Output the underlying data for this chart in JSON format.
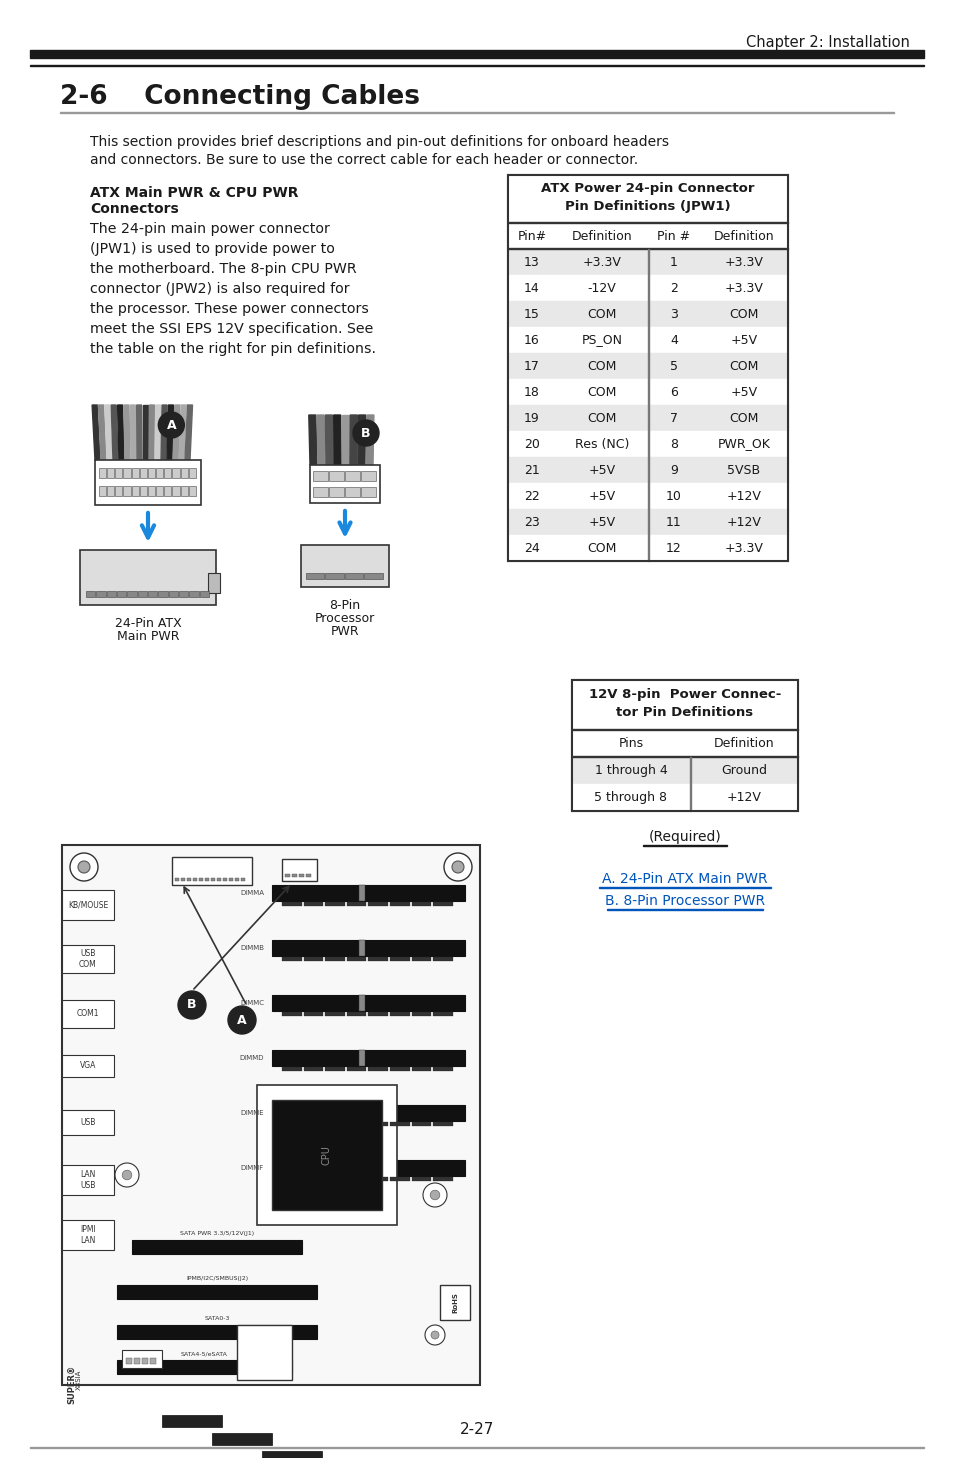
{
  "page_bg": "#ffffff",
  "chapter_title": "Chapter 2: Installation",
  "section_title": "2-6    Connecting Cables",
  "intro_text": "This section provides brief descriptions and pin-out definitions for onboard headers\nand connectors. Be sure to use the correct cable for each header or connector.",
  "subsection_title": "ATX Main PWR & CPU PWR\nConnectors",
  "body_text_lines": [
    "The 24-pin main power connector",
    "(JPW1) is used to provide power to",
    "the motherboard. The 8-pin CPU PWR",
    "connector (JPW2) is also required for",
    "the processor. These power connectors",
    "meet the SSI EPS 12V specification. See",
    "the table on the right for pin definitions."
  ],
  "table1_title": "ATX Power 24-pin Connector\nPin Definitions (JPW1)",
  "table1_headers": [
    "Pin#",
    "Definition",
    "Pin #",
    "Definition"
  ],
  "table1_rows": [
    [
      "13",
      "+3.3V",
      "1",
      "+3.3V"
    ],
    [
      "14",
      "-12V",
      "2",
      "+3.3V"
    ],
    [
      "15",
      "COM",
      "3",
      "COM"
    ],
    [
      "16",
      "PS_ON",
      "4",
      "+5V"
    ],
    [
      "17",
      "COM",
      "5",
      "COM"
    ],
    [
      "18",
      "COM",
      "6",
      "+5V"
    ],
    [
      "19",
      "COM",
      "7",
      "COM"
    ],
    [
      "20",
      "Res (NC)",
      "8",
      "PWR_OK"
    ],
    [
      "21",
      "+5V",
      "9",
      "5VSB"
    ],
    [
      "22",
      "+5V",
      "10",
      "+12V"
    ],
    [
      "23",
      "+5V",
      "11",
      "+12V"
    ],
    [
      "24",
      "COM",
      "12",
      "+3.3V"
    ]
  ],
  "table2_title": "12V 8-pin  Power Connec-\ntor Pin Definitions",
  "table2_headers": [
    "Pins",
    "Definition"
  ],
  "table2_rows": [
    [
      "1 through 4",
      "Ground"
    ],
    [
      "5 through 8",
      "+12V"
    ]
  ],
  "required_text": "(Required)",
  "label_a": "A. 24-Pin ATX Main PWR",
  "label_b": "B. 8-Pin Processor PWR",
  "connector_a_label1": "24-Pin ATX",
  "connector_a_label2": "Main PWR",
  "connector_b_label1": "8-Pin",
  "connector_b_label2": "Processor",
  "connector_b_label3": "PWR",
  "page_number": "2-27",
  "gray_row_color": "#e8e8e8",
  "white_row_color": "#ffffff",
  "table_border_color": "#555555",
  "text_color": "#1a1a1a",
  "blue_link_color": "#0055bb",
  "arrow_color": "#1a88dd",
  "wire_colors": [
    "#888888",
    "#333333",
    "#aaaaaa",
    "#555555",
    "#cccccc",
    "#222222",
    "#999999",
    "#444444"
  ]
}
